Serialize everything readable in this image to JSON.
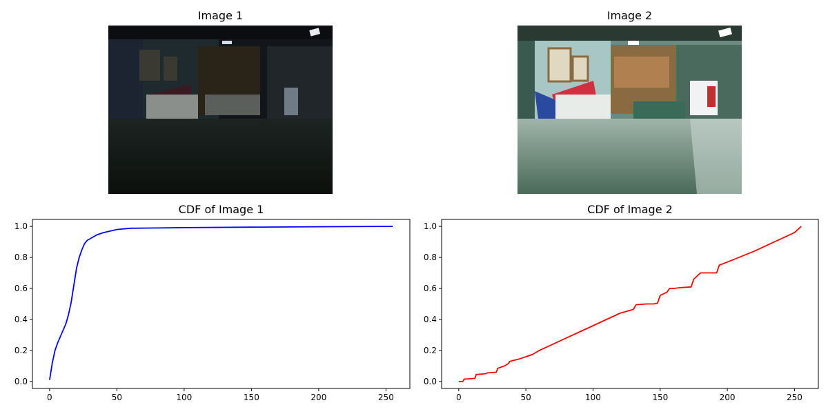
{
  "images": [
    {
      "title": "Image 1",
      "description": "dark indoor hallway photo"
    },
    {
      "title": "Image 2",
      "description": "brightened equalized hallway photo"
    }
  ],
  "chart_data": [
    {
      "type": "line",
      "title": "CDF of Image 1",
      "xlabel": "",
      "ylabel": "",
      "xlim": [
        0,
        255
      ],
      "ylim": [
        0,
        1.0
      ],
      "xticks": [
        0,
        50,
        100,
        150,
        200,
        250
      ],
      "yticks": [
        0.0,
        0.2,
        0.4,
        0.6,
        0.8,
        1.0
      ],
      "grid": false,
      "color": "#0000ff",
      "x": [
        0,
        2,
        4,
        6,
        8,
        10,
        12,
        14,
        16,
        18,
        20,
        22,
        24,
        26,
        28,
        30,
        35,
        40,
        45,
        50,
        60,
        80,
        100,
        150,
        200,
        255
      ],
      "y": [
        0.01,
        0.12,
        0.2,
        0.25,
        0.29,
        0.33,
        0.37,
        0.43,
        0.51,
        0.62,
        0.73,
        0.8,
        0.85,
        0.89,
        0.91,
        0.92,
        0.945,
        0.96,
        0.97,
        0.98,
        0.988,
        0.99,
        0.992,
        0.995,
        0.998,
        1.0
      ]
    },
    {
      "type": "line",
      "title": "CDF of Image 2",
      "xlabel": "",
      "ylabel": "",
      "xlim": [
        0,
        255
      ],
      "ylim": [
        0,
        1.0
      ],
      "xticks": [
        0,
        50,
        100,
        150,
        200,
        250
      ],
      "yticks": [
        0.0,
        0.2,
        0.4,
        0.6,
        0.8,
        1.0
      ],
      "grid": false,
      "color": "#ff0000",
      "x": [
        0,
        3,
        4,
        12,
        13,
        20,
        21,
        28,
        29,
        34,
        37,
        38,
        45,
        55,
        60,
        65,
        70,
        80,
        90,
        100,
        105,
        110,
        115,
        120,
        130,
        132,
        140,
        145,
        148,
        150,
        155,
        157,
        160,
        165,
        173,
        175,
        180,
        192,
        194,
        200,
        210,
        220,
        230,
        240,
        250,
        255
      ],
      "y": [
        0.0,
        0.0,
        0.015,
        0.02,
        0.045,
        0.05,
        0.055,
        0.06,
        0.085,
        0.1,
        0.115,
        0.13,
        0.145,
        0.175,
        0.2,
        0.22,
        0.24,
        0.28,
        0.32,
        0.36,
        0.38,
        0.4,
        0.42,
        0.44,
        0.465,
        0.495,
        0.5,
        0.5,
        0.505,
        0.555,
        0.575,
        0.6,
        0.6,
        0.605,
        0.61,
        0.66,
        0.7,
        0.7,
        0.75,
        0.77,
        0.805,
        0.84,
        0.88,
        0.92,
        0.96,
        1.0
      ]
    }
  ]
}
